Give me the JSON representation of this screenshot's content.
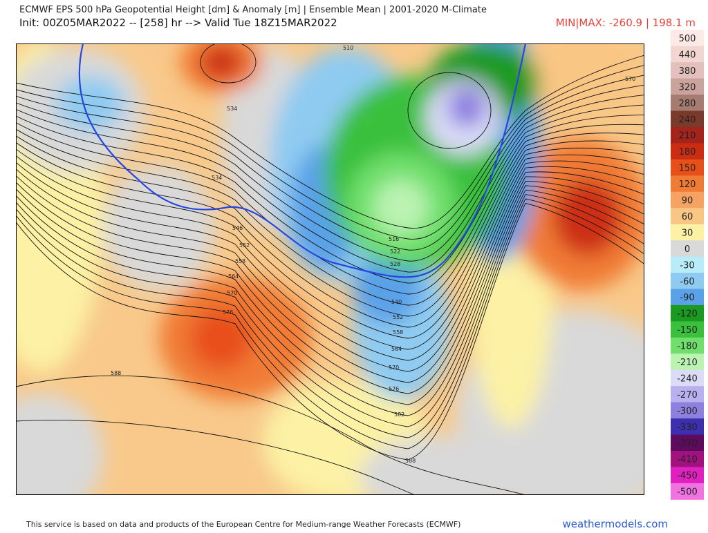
{
  "header": {
    "title": "ECMWF EPS 500 hPa Geopotential Height [dm] & Anomaly [m] | Ensemble Mean | 2001-2020 M-Climate",
    "subtitle": "Init: 00Z05MAR2022 -- [258] hr --> Valid Tue 18Z15MAR2022",
    "minmax": "MIN|MAX: -260.9 | 198.1 m"
  },
  "colorbar": {
    "labels": [
      "500",
      "440",
      "380",
      "320",
      "280",
      "240",
      "210",
      "180",
      "150",
      "120",
      "90",
      "60",
      "30",
      "0",
      "-30",
      "-60",
      "-90",
      "-120",
      "-150",
      "-180",
      "-210",
      "-240",
      "-270",
      "-300",
      "-330",
      "-370",
      "-410",
      "-450",
      "-500"
    ],
    "colors": [
      "#fde9e6",
      "#f2d6d2",
      "#e3c0bb",
      "#c9a39c",
      "#a67b70",
      "#7a3b2c",
      "#a4231a",
      "#cc2d12",
      "#e8501a",
      "#f07b35",
      "#f5a262",
      "#f9c684",
      "#fcf1a4",
      "#d9d9d9",
      "#b7ecf8",
      "#8fcbf1",
      "#5aa1e8",
      "#1b9a21",
      "#3bc03d",
      "#70df6c",
      "#bbf3b3",
      "#dcdcf8",
      "#b9b0ef",
      "#8e80df",
      "#3d2fae",
      "#5e0a5e",
      "#a1127f",
      "#e021c0",
      "#f173e1"
    ]
  },
  "map": {
    "contour_labels": [
      "510",
      "534",
      "534",
      "546",
      "552",
      "558",
      "564",
      "570",
      "576",
      "588",
      "516",
      "522",
      "528",
      "540",
      "552",
      "558",
      "564",
      "570",
      "576",
      "582",
      "588",
      "570"
    ]
  },
  "footer": {
    "credit": "This service is based on data and products of the European Centre for Medium-range Weather Forecasts (ECMWF)",
    "site": "weathermodels.com"
  }
}
